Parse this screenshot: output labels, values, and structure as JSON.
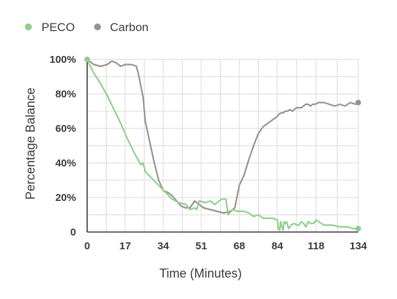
{
  "chart_data": {
    "type": "line",
    "xlabel": "Time (Minutes)",
    "ylabel": "Percentage Balance",
    "x_tick_labels": [
      "0",
      "17",
      "34",
      "51",
      "68",
      "84",
      "118",
      "134"
    ],
    "y_tick_labels": [
      "0",
      "20%",
      "40%",
      "60%",
      "80%",
      "100%"
    ],
    "y_tick_values": [
      0,
      20,
      40,
      60,
      80,
      100
    ],
    "ylim": [
      0,
      100
    ],
    "grid": true,
    "legend_position": "top-left",
    "series": [
      {
        "name": "PECO",
        "color": "#8fcf8c",
        "points": [
          [
            0,
            100
          ],
          [
            1,
            97
          ],
          [
            3,
            92
          ],
          [
            6,
            86
          ],
          [
            9,
            79
          ],
          [
            12,
            71
          ],
          [
            15,
            63
          ],
          [
            18,
            54
          ],
          [
            21,
            46
          ],
          [
            24,
            39
          ],
          [
            25,
            40
          ],
          [
            26,
            35
          ],
          [
            29,
            31
          ],
          [
            32,
            27
          ],
          [
            35,
            23
          ],
          [
            38,
            19
          ],
          [
            41,
            17
          ],
          [
            44,
            16
          ],
          [
            46,
            13
          ],
          [
            48,
            14
          ],
          [
            49,
            13
          ],
          [
            50,
            18
          ],
          [
            53,
            17
          ],
          [
            55,
            18
          ],
          [
            57,
            16
          ],
          [
            60,
            19
          ],
          [
            62,
            19
          ],
          [
            63,
            10
          ],
          [
            65,
            13
          ],
          [
            67,
            12
          ],
          [
            70,
            12
          ],
          [
            72,
            11
          ],
          [
            74,
            9
          ],
          [
            76,
            10
          ],
          [
            78,
            8
          ],
          [
            80,
            8
          ],
          [
            82,
            8
          ],
          [
            84,
            7
          ],
          [
            85,
            2
          ],
          [
            86,
            1
          ],
          [
            87,
            6
          ],
          [
            88,
            3
          ],
          [
            89,
            1
          ],
          [
            90,
            6
          ],
          [
            91,
            5
          ],
          [
            92,
            6
          ],
          [
            94,
            2
          ],
          [
            96,
            4
          ],
          [
            99,
            5
          ],
          [
            101,
            4
          ],
          [
            103,
            4
          ],
          [
            105,
            6
          ],
          [
            107,
            5
          ],
          [
            109,
            3
          ],
          [
            111,
            6
          ],
          [
            113,
            5
          ],
          [
            116,
            5
          ],
          [
            118,
            7
          ],
          [
            119,
            6
          ],
          [
            121,
            4
          ],
          [
            124,
            4
          ],
          [
            127,
            3
          ],
          [
            130,
            3
          ],
          [
            132,
            2
          ],
          [
            134,
            2
          ]
        ]
      },
      {
        "name": "Carbon",
        "color": "#9a918d",
        "points": [
          [
            0,
            100
          ],
          [
            3,
            97
          ],
          [
            6,
            96
          ],
          [
            9,
            97
          ],
          [
            11,
            99
          ],
          [
            13,
            98
          ],
          [
            15,
            96
          ],
          [
            17,
            97
          ],
          [
            19,
            97
          ],
          [
            20,
            97
          ],
          [
            22,
            96
          ],
          [
            23,
            91
          ],
          [
            25,
            78
          ],
          [
            26,
            64
          ],
          [
            28,
            52
          ],
          [
            30,
            40
          ],
          [
            32,
            30
          ],
          [
            34,
            24
          ],
          [
            36,
            23
          ],
          [
            38,
            21
          ],
          [
            40,
            18
          ],
          [
            42,
            15
          ],
          [
            44,
            14
          ],
          [
            46,
            14
          ],
          [
            48,
            18
          ],
          [
            50,
            16
          ],
          [
            52,
            14
          ],
          [
            55,
            13
          ],
          [
            58,
            12
          ],
          [
            61,
            11
          ],
          [
            64,
            12
          ],
          [
            66,
            14
          ],
          [
            68,
            27
          ],
          [
            70,
            33
          ],
          [
            72,
            42
          ],
          [
            74,
            50
          ],
          [
            76,
            57
          ],
          [
            78,
            61
          ],
          [
            80,
            63
          ],
          [
            82,
            65
          ],
          [
            84,
            67
          ],
          [
            85,
            68
          ],
          [
            87,
            69
          ],
          [
            89,
            69
          ],
          [
            91,
            70
          ],
          [
            93,
            70
          ],
          [
            95,
            71
          ],
          [
            97,
            70
          ],
          [
            99,
            71
          ],
          [
            101,
            72
          ],
          [
            103,
            72
          ],
          [
            105,
            72
          ],
          [
            107,
            73
          ],
          [
            109,
            74
          ],
          [
            111,
            74
          ],
          [
            113,
            73
          ],
          [
            115,
            74
          ],
          [
            117,
            74
          ],
          [
            119,
            75
          ],
          [
            121,
            75
          ],
          [
            123,
            74
          ],
          [
            125,
            73
          ],
          [
            127,
            74
          ],
          [
            129,
            73
          ],
          [
            131,
            75
          ],
          [
            133,
            74
          ],
          [
            134,
            75
          ]
        ]
      }
    ]
  }
}
